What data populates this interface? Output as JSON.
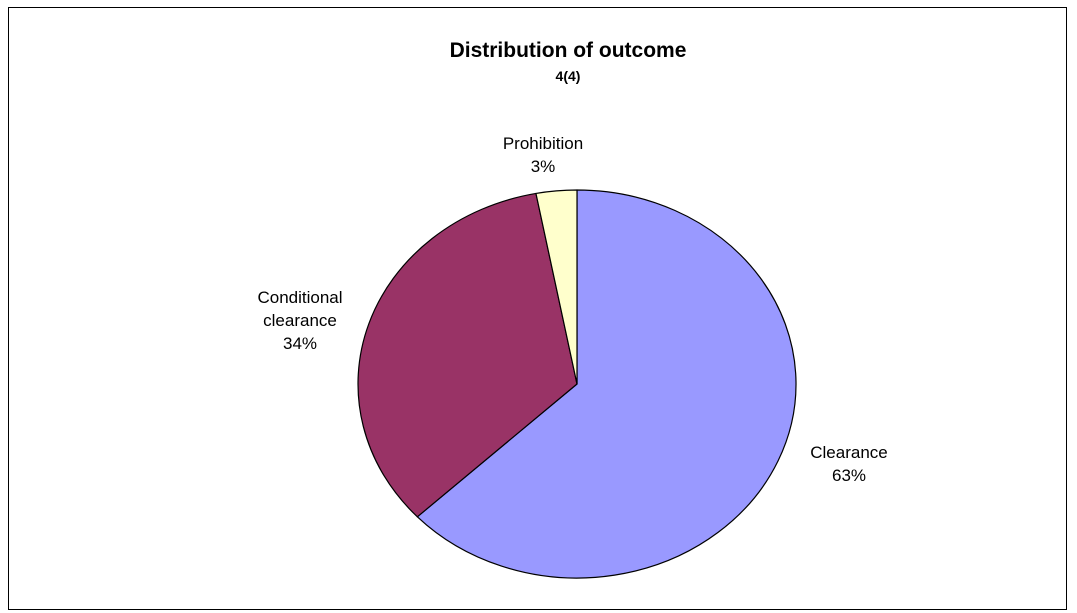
{
  "chart_data": {
    "type": "pie",
    "title": "Distribution of outcome",
    "subtitle": "4(4)",
    "slices": [
      {
        "label": "Clearance",
        "percent_label": "63%",
        "value": 63,
        "color": "#9999FF"
      },
      {
        "label": "Conditional clearance",
        "label_lines": [
          "Conditional",
          "clearance"
        ],
        "percent_label": "34%",
        "value": 34,
        "color": "#993366"
      },
      {
        "label": "Prohibition",
        "percent_label": "3%",
        "value": 3,
        "color": "#FFFFCC"
      }
    ],
    "start_angle": "12 o'clock",
    "direction": "clockwise",
    "legend": "none",
    "border_color": "#000000"
  }
}
